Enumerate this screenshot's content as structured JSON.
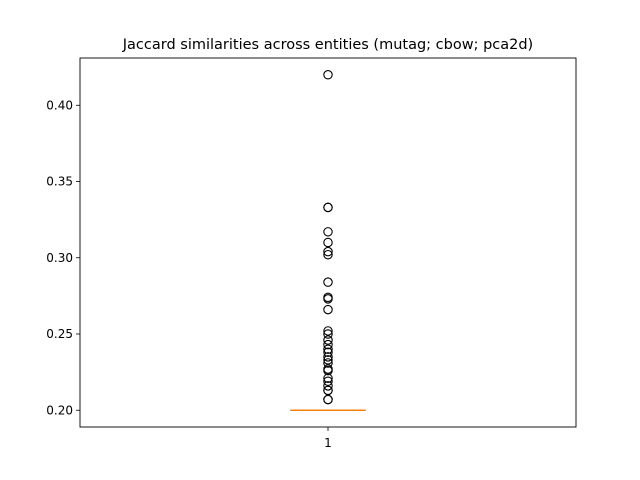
{
  "chart_data": {
    "type": "box",
    "title": "Jaccard similarities across entities (mutag; cbow; pca2d)",
    "xlabel": "",
    "ylabel": "",
    "categories": [
      "1"
    ],
    "ylim": [
      0.189,
      0.431
    ],
    "y_ticks": [
      0.2,
      0.25,
      0.3,
      0.35,
      0.4
    ],
    "y_tick_labels": [
      "0.20",
      "0.25",
      "0.30",
      "0.35",
      "0.40"
    ],
    "grid": false,
    "legend": "none",
    "box": {
      "q1": 0.2,
      "median": 0.2,
      "q3": 0.2,
      "whisker_low": 0.2,
      "whisker_high": 0.2
    },
    "outliers": [
      0.207,
      0.207,
      0.213,
      0.213,
      0.216,
      0.219,
      0.221,
      0.226,
      0.227,
      0.231,
      0.233,
      0.235,
      0.238,
      0.24,
      0.243,
      0.246,
      0.25,
      0.252,
      0.266,
      0.273,
      0.274,
      0.284,
      0.302,
      0.304,
      0.31,
      0.317,
      0.333,
      0.333,
      0.42
    ],
    "colors": {
      "box": "#000000",
      "median": "#ff7f0e",
      "outlier_edge": "#000000"
    }
  }
}
